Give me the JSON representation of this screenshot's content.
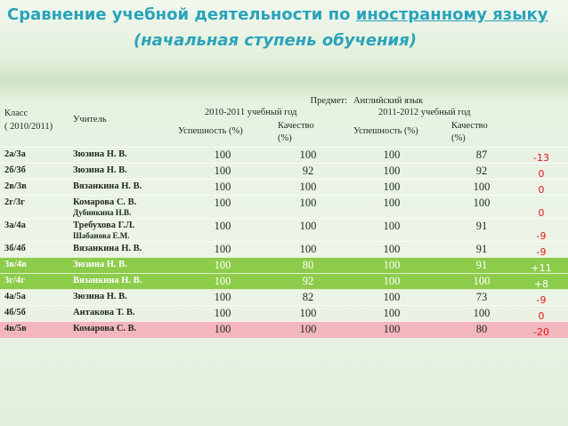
{
  "header": {
    "title_start": "Сравнение учебной деятельности по",
    "title_subject": "иностранному языку",
    "subtitle": "(начальная ступень обучения)"
  },
  "table": {
    "subject_label": "Предмет:",
    "subject": "Английский язык",
    "header": {
      "class": "Класс",
      "class_year": "( 2010/2011)",
      "teacher": "Учитель",
      "year1": "2010-2011 учебный год",
      "year2": "2011-2012 учебный год",
      "success1": "Успешность (%)",
      "quality1": "Качество",
      "quality_unit1": "(%)",
      "success2": "Успешность (%)",
      "quality2": "Качество",
      "quality_unit2": "(%)"
    },
    "rows": [
      {
        "class": "2а/3а",
        "teacher": "Зюзина Н. В.",
        "s2010": 100,
        "q2010": 100,
        "s2011": 100,
        "q2011": 87,
        "diff": "-13"
      },
      {
        "class": "2б/3б",
        "teacher": "Зюзина Н. В.",
        "s2010": 100,
        "q2010": 92,
        "s2011": 100,
        "q2011": 92,
        "diff": "0"
      },
      {
        "class": "2в/3в",
        "teacher": "Вязанкина Н. В.",
        "s2010": 100,
        "q2010": 100,
        "s2011": 100,
        "q2011": 100,
        "diff": "0"
      },
      {
        "class": "2г/3г",
        "teacher": "Комарова С. В.",
        "teacher2": "Дубинкина Н.В.",
        "s2010": 100,
        "q2010": 100,
        "s2011": 100,
        "q2011": 100,
        "diff": "0"
      },
      {
        "class": "3а/4а",
        "teacher": "Требухова Г.Л.",
        "teacher2": "Шабанова Е.М.",
        "s2010": 100,
        "q2010": 100,
        "s2011": 100,
        "q2011": 91,
        "diff": "-9"
      },
      {
        "class": "3б/4б",
        "teacher": "Вязанкина Н. В.",
        "s2010": 100,
        "q2010": 100,
        "s2011": 100,
        "q2011": 91,
        "diff": "-9"
      },
      {
        "class": "3в/4в",
        "teacher": "Зюзина Н. В.",
        "s2010": 100,
        "q2010": 80,
        "s2011": 100,
        "q2011": 91,
        "diff": "+11",
        "highlight": "green"
      },
      {
        "class": "3г/4г",
        "teacher": "Вязанкина Н. В.",
        "s2010": 100,
        "q2010": 92,
        "s2011": 100,
        "q2011": 100,
        "diff": "+8",
        "highlight": "green"
      },
      {
        "class": "4а/5а",
        "teacher": "Зюзина Н. В.",
        "s2010": 100,
        "q2010": 82,
        "s2011": 100,
        "q2011": 73,
        "diff": "-9"
      },
      {
        "class": "4б/5б",
        "teacher": "Антакова Т. В.",
        "s2010": 100,
        "q2010": 100,
        "s2011": 100,
        "q2011": 100,
        "diff": "0"
      },
      {
        "class": "4в/5в",
        "teacher": "Комарова С. В.",
        "s2010": 100,
        "q2010": 100,
        "s2011": 100,
        "q2011": 80,
        "diff": "-20",
        "highlight": "pink"
      }
    ]
  }
}
